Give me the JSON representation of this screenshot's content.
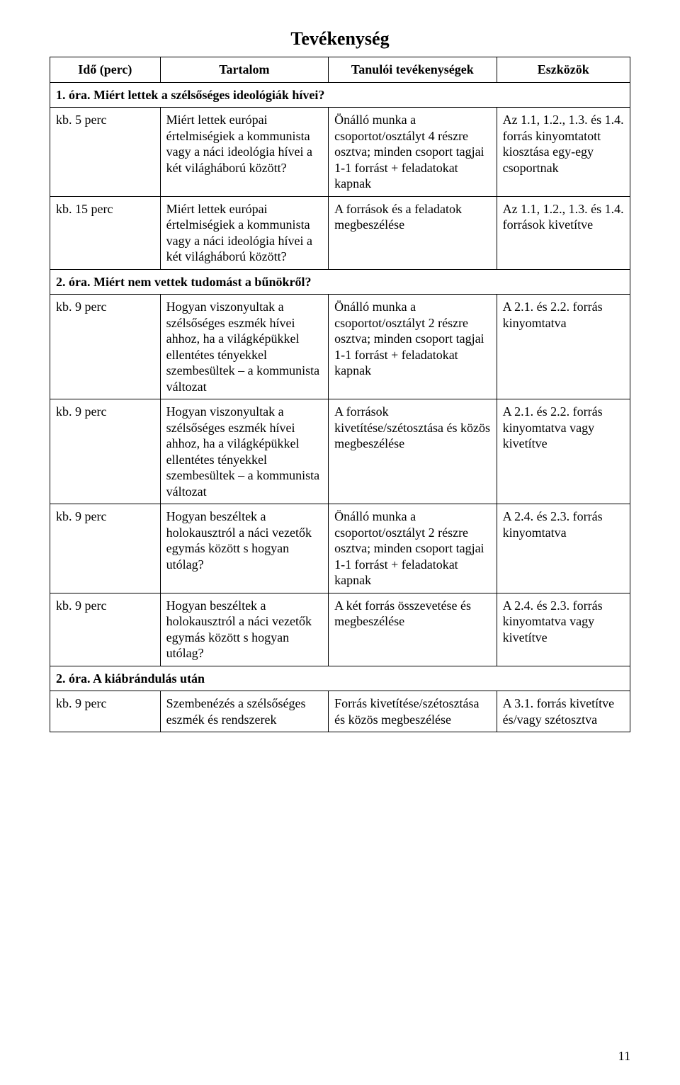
{
  "title": "Tevékenység",
  "columns": [
    "Idő (perc)",
    "Tartalom",
    "Tanulói tevékenységek",
    "Eszközök"
  ],
  "sections": {
    "s1": "1. óra. Miért lettek a szélsőséges ideológiák hívei?",
    "s2": "2. óra. Miért nem vettek tudomást a bűnökről?",
    "s3": "2. óra. A kiábrándulás után"
  },
  "rows": {
    "r1": {
      "ido": "kb. 5 perc",
      "tartalom": "Miért lettek európai értelmiségiek a kommunista vagy a náci ideológia hívei a két világháború között?",
      "tanuloi": "Önálló munka a csoportot/osztályt 4 részre osztva; minden csoport tagjai 1-1 forrást + feladatokat kapnak",
      "eszkozok": "Az 1.1, 1.2., 1.3. és 1.4. forrás kinyomtatott kiosztása egy-egy csoportnak"
    },
    "r2": {
      "ido": "kb. 15 perc",
      "tartalom": "Miért lettek európai értelmiségiek a kommunista vagy a náci ideológia hívei a két világháború között?",
      "tanuloi": "A források és a feladatok megbeszélése",
      "eszkozok": "Az 1.1, 1.2., 1.3. és 1.4. források kivetítve"
    },
    "r3": {
      "ido": "kb. 9 perc",
      "tartalom": "Hogyan viszonyultak a szélsőséges eszmék hívei ahhoz, ha a világképükkel ellentétes tényekkel szembesültek – a kommunista változat",
      "tanuloi": "Önálló munka a csoportot/osztályt 2 részre osztva; minden csoport tagjai 1-1 forrást + feladatokat kapnak",
      "eszkozok": "A 2.1. és 2.2. forrás kinyomtatva"
    },
    "r4": {
      "ido": "kb. 9 perc",
      "tartalom": "Hogyan viszonyultak a szélsőséges eszmék hívei ahhoz, ha a világképükkel ellentétes tényekkel szembesültek – a kommunista változat",
      "tanuloi": "A források kivetítése/szétosztása és közös megbeszélése",
      "eszkozok": "A 2.1. és 2.2. forrás kinyomtatva vagy kivetítve"
    },
    "r5": {
      "ido": "kb. 9 perc",
      "tartalom": "Hogyan beszéltek a holokausztról a náci vezetők egymás között s hogyan utólag?",
      "tanuloi": "Önálló munka a csoportot/osztályt 2 részre osztva; minden csoport tagjai 1-1 forrást + feladatokat kapnak",
      "eszkozok": "A 2.4. és 2.3. forrás kinyomtatva"
    },
    "r6": {
      "ido": "kb. 9 perc",
      "tartalom": "Hogyan beszéltek a holokausztról a náci vezetők egymás között s hogyan utólag?",
      "tanuloi": "A két forrás összevetése és megbeszélése",
      "eszkozok": "A 2.4. és 2.3. forrás kinyomtatva vagy kivetítve"
    },
    "r7": {
      "ido": "kb. 9 perc",
      "tartalom": "Szembenézés a szélsőséges eszmék és rendszerek",
      "tanuloi": "Forrás kivetítése/szétosztása és közös megbeszélése",
      "eszkozok": "A 3.1. forrás kivetítve és/vagy szétosztva"
    }
  },
  "page_number": "11"
}
